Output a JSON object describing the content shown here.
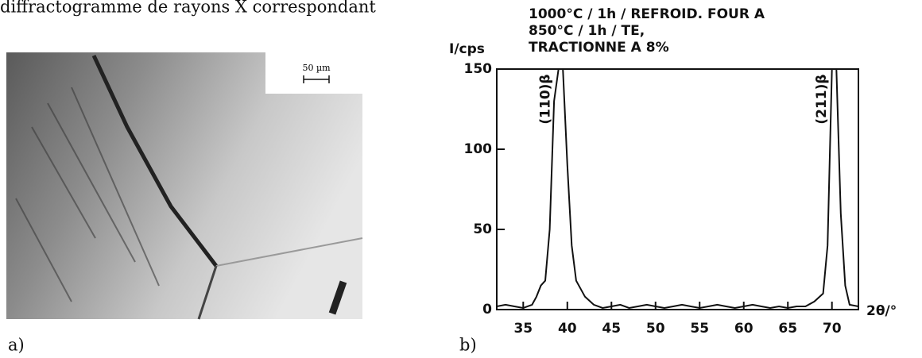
{
  "caption_line": "diffractogramme de rayons X correspondant",
  "panel_a": {
    "label": "a)",
    "scale_bar": "50 µm"
  },
  "panel_b": {
    "label": "b)"
  },
  "chart_data": {
    "type": "line",
    "annotations": [
      "1000°C / 1h / REFROID. FOUR A",
      "850°C / 1h / TE,",
      "TRACTIONNE A 8%"
    ],
    "y_label": "I/cps",
    "x_label": "2θ/°",
    "peak_labels": [
      {
        "text": "(110)β",
        "x": 39
      },
      {
        "text": "(211)β",
        "x": 70.3
      }
    ],
    "x": [
      32,
      33,
      34,
      35,
      36,
      36.5,
      37,
      37.5,
      38,
      38.5,
      39,
      39.5,
      40,
      40.5,
      41,
      42,
      43,
      44,
      45,
      46,
      47,
      48,
      49,
      50,
      51,
      52,
      53,
      54,
      55,
      56,
      57,
      58,
      59,
      60,
      61,
      62,
      63,
      64,
      65,
      66,
      67,
      68,
      69,
      69.5,
      70,
      70.5,
      71,
      71.5,
      72,
      73
    ],
    "series": [
      {
        "name": "I",
        "color": "#111111",
        "values": [
          2,
          3,
          2,
          1,
          3,
          8,
          15,
          18,
          50,
          130,
          150,
          150,
          90,
          40,
          18,
          8,
          3,
          1,
          2,
          3,
          1,
          2,
          3,
          2,
          1,
          2,
          3,
          2,
          1,
          2,
          3,
          2,
          1,
          2,
          3,
          2,
          1,
          2,
          1,
          2,
          2,
          5,
          10,
          40,
          150,
          150,
          60,
          15,
          3,
          2
        ]
      }
    ],
    "xlim": [
      32,
      73
    ],
    "ylim": [
      0,
      150
    ],
    "xticks": [
      35,
      40,
      45,
      50,
      55,
      60,
      65,
      70
    ],
    "yticks": [
      0,
      50,
      100,
      150
    ]
  }
}
